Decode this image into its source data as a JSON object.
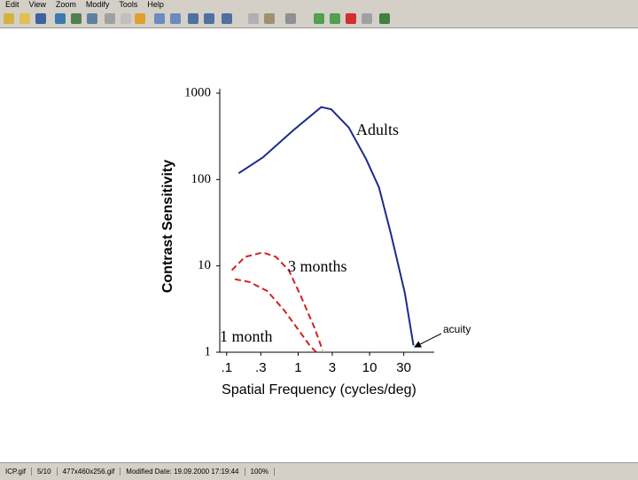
{
  "menu": [
    "Edit",
    "View",
    "Zoom",
    "Modify",
    "Tools",
    "Help"
  ],
  "status": [
    "ICP.gif",
    "5/10",
    "477x460x256.gif",
    "Modified Date: 19.09.2000 17:19:44",
    "100%"
  ],
  "chart_data": {
    "type": "line",
    "xlabel": "Spatial Frequency (cycles/deg)",
    "ylabel": "Contrast Sensitivity",
    "xscale": "log",
    "yscale": "log",
    "xlim": [
      0.08,
      80
    ],
    "ylim": [
      1,
      1000
    ],
    "xticks": [
      {
        "value": 0.1,
        "label": ".1"
      },
      {
        "value": 0.3,
        "label": ".3"
      },
      1,
      3,
      10,
      30
    ],
    "yticks": [
      1,
      10,
      100,
      1000
    ],
    "series": [
      {
        "name": "Adults",
        "color": "#1c2a8c",
        "dashed": false,
        "x": [
          0.147,
          0.32,
          0.85,
          2.1,
          2.9,
          5.1,
          8.9,
          13.5,
          20,
          31,
          41
        ],
        "values": [
          118,
          180,
          370,
          690,
          650,
          400,
          173,
          81,
          23,
          4.9,
          1.2
        ]
      },
      {
        "name": "3 months",
        "color": "#d42020",
        "dashed": true,
        "x": [
          0.118,
          0.18,
          0.32,
          0.49,
          0.74,
          1.1,
          1.7,
          2.2
        ],
        "values": [
          8.9,
          12.7,
          14.3,
          12.7,
          8.9,
          4.4,
          1.9,
          1.05
        ]
      },
      {
        "name": "1 month",
        "color": "#d42020",
        "dashed": true,
        "x": [
          0.13,
          0.21,
          0.37,
          0.64,
          0.97,
          1.47,
          1.8
        ],
        "values": [
          7,
          6.5,
          5.1,
          3.05,
          1.9,
          1.18,
          1
        ]
      }
    ],
    "annotation": "acuity"
  }
}
